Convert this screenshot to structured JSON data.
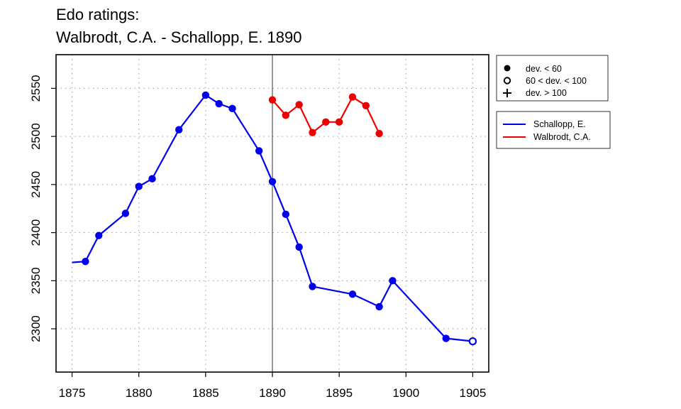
{
  "chart_data": {
    "type": "line",
    "title_lines": [
      "Edo ratings:",
      "Walbrodt, C.A. - Schallopp, E. 1890"
    ],
    "xlabel": "",
    "ylabel": "",
    "xlim": [
      1873.8,
      1906.2
    ],
    "ylim": [
      2255,
      2585
    ],
    "x_ticks": [
      1875,
      1880,
      1885,
      1890,
      1895,
      1900,
      1905
    ],
    "y_ticks": [
      2300,
      2350,
      2400,
      2450,
      2500,
      2550
    ],
    "grid": "dotted",
    "reference_line_x": 1890,
    "marker_legend": {
      "placement": "top-right-outside",
      "entries": [
        {
          "marker": "filled",
          "label": "dev. < 60"
        },
        {
          "marker": "open",
          "label": "60 < dev. < 100"
        },
        {
          "marker": "plus",
          "label": "dev. > 100"
        }
      ]
    },
    "series_legend": {
      "placement": "right-outside"
    },
    "series": [
      {
        "name": "Schallopp, E.",
        "color": "#0000ee",
        "points": [
          {
            "x": 1875,
            "y": 2369,
            "marker": "none"
          },
          {
            "x": 1876,
            "y": 2370,
            "marker": "filled"
          },
          {
            "x": 1877,
            "y": 2397,
            "marker": "filled"
          },
          {
            "x": 1879,
            "y": 2420,
            "marker": "filled"
          },
          {
            "x": 1880,
            "y": 2448,
            "marker": "filled"
          },
          {
            "x": 1881,
            "y": 2456,
            "marker": "filled"
          },
          {
            "x": 1883,
            "y": 2507,
            "marker": "filled"
          },
          {
            "x": 1885,
            "y": 2543,
            "marker": "filled"
          },
          {
            "x": 1886,
            "y": 2534,
            "marker": "filled"
          },
          {
            "x": 1887,
            "y": 2529,
            "marker": "filled"
          },
          {
            "x": 1889,
            "y": 2485,
            "marker": "filled"
          },
          {
            "x": 1890,
            "y": 2453,
            "marker": "filled"
          },
          {
            "x": 1891,
            "y": 2419,
            "marker": "filled"
          },
          {
            "x": 1892,
            "y": 2385,
            "marker": "filled"
          },
          {
            "x": 1893,
            "y": 2344,
            "marker": "filled"
          },
          {
            "x": 1896,
            "y": 2336,
            "marker": "filled"
          },
          {
            "x": 1898,
            "y": 2323,
            "marker": "filled"
          },
          {
            "x": 1899,
            "y": 2350,
            "marker": "filled"
          },
          {
            "x": 1903,
            "y": 2290,
            "marker": "filled"
          },
          {
            "x": 1905,
            "y": 2287,
            "marker": "open"
          }
        ]
      },
      {
        "name": "Walbrodt, C.A.",
        "color": "#ee0000",
        "points": [
          {
            "x": 1890,
            "y": 2538,
            "marker": "filled"
          },
          {
            "x": 1891,
            "y": 2522,
            "marker": "filled"
          },
          {
            "x": 1892,
            "y": 2533,
            "marker": "filled"
          },
          {
            "x": 1893,
            "y": 2504,
            "marker": "filled"
          },
          {
            "x": 1894,
            "y": 2515,
            "marker": "filled"
          },
          {
            "x": 1895,
            "y": 2515,
            "marker": "filled"
          },
          {
            "x": 1896,
            "y": 2541,
            "marker": "filled"
          },
          {
            "x": 1897,
            "y": 2532,
            "marker": "filled"
          },
          {
            "x": 1898,
            "y": 2503,
            "marker": "filled"
          }
        ]
      }
    ]
  }
}
